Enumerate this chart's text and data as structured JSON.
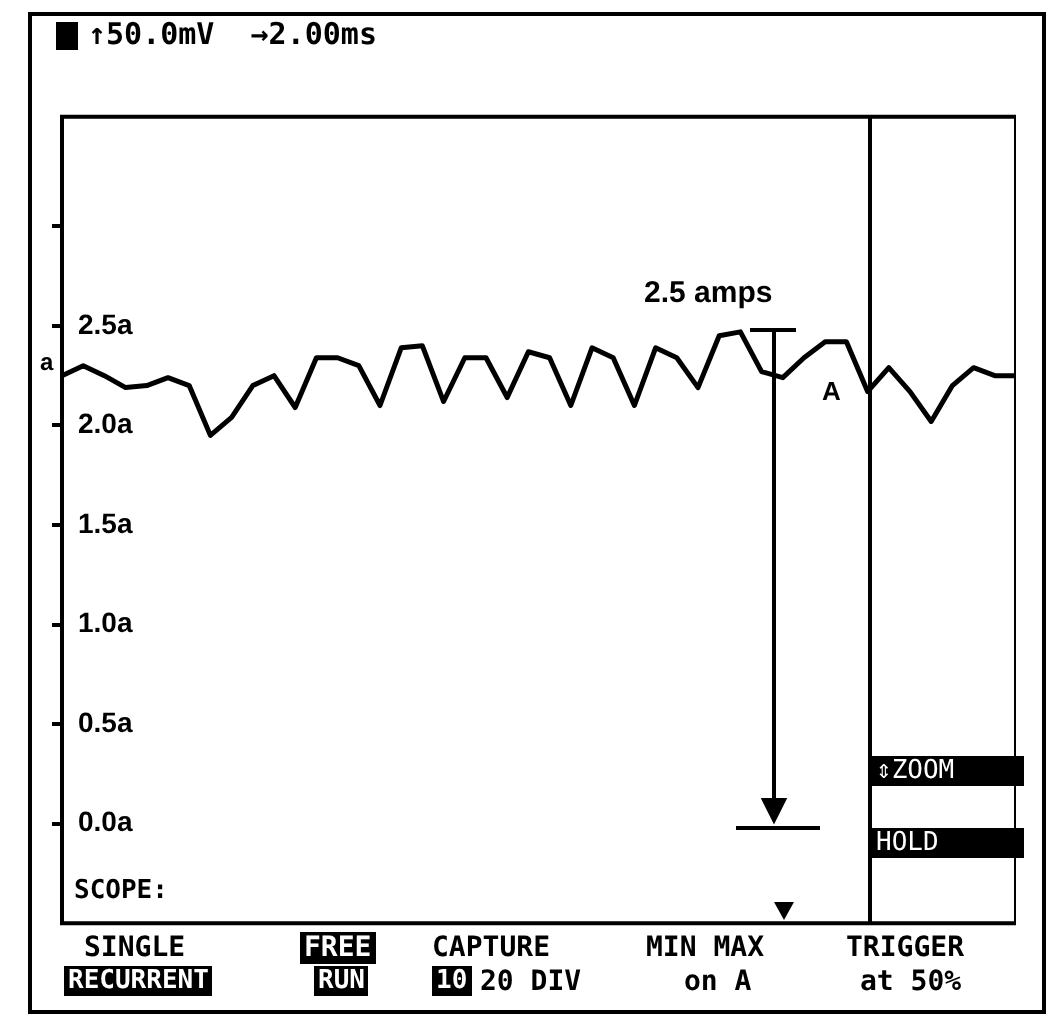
{
  "chart_data": {
    "type": "line",
    "title": "↑50.0mV  →2.00ms",
    "categories": [
      null,
      null,
      null,
      null,
      null,
      null,
      null,
      null,
      null,
      null,
      null,
      null,
      null,
      null,
      null,
      null,
      null,
      null,
      null,
      null,
      null,
      null,
      null,
      null,
      null,
      null,
      null,
      null,
      null,
      null,
      null,
      null,
      null,
      null,
      null,
      null,
      null,
      null,
      null,
      null,
      null,
      null,
      null,
      null,
      null,
      null
    ],
    "series": [
      {
        "color": "#000000",
        "values": [
          2.25,
          2.3,
          2.25,
          2.19,
          2.2,
          2.24,
          2.2,
          1.95,
          2.04,
          2.2,
          2.25,
          2.09,
          2.34,
          2.34,
          2.3,
          2.1,
          2.39,
          2.4,
          2.12,
          2.34,
          2.34,
          2.14,
          2.37,
          2.34,
          2.1,
          2.39,
          2.34,
          2.1,
          2.39,
          2.34,
          2.19,
          2.45,
          2.47,
          2.27,
          2.24,
          2.34,
          2.42,
          2.42,
          2.17,
          2.29,
          2.17,
          2.02,
          2.2,
          2.29,
          2.25,
          2.25
        ]
      }
    ],
    "ylim": [
      -0.5,
      3.55
    ],
    "yticks": [
      {
        "value": 0,
        "label": "0.0a"
      },
      {
        "value": 0.5,
        "label": "0.5a"
      },
      {
        "value": 1,
        "label": "1.0a"
      },
      {
        "value": 1.5,
        "label": "1.5a"
      },
      {
        "value": 2,
        "label": "2.0a"
      },
      {
        "value": 2.5,
        "label": "2.5a"
      },
      {
        "value": 3,
        "label": null
      }
    ],
    "tick_labels": "y",
    "marker": "none",
    "line_style": "solid",
    "annotations": [
      "2.5 amps",
      "A",
      "a",
      "SCOPE:",
      "⇕ZOOM",
      "HOLD",
      "SINGLE",
      "RECURRENT",
      "FREE",
      "RUN",
      "CAPTURE",
      "10",
      "20 DIV",
      "MIN MAX",
      "on A",
      "TRIGGER",
      "at 50%"
    ]
  }
}
